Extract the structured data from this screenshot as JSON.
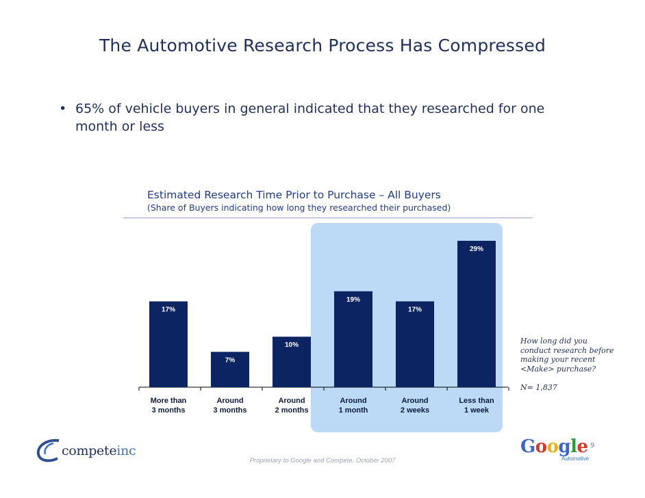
{
  "slide": {
    "title": "The Automotive Research Process Has Compressed",
    "bullet_symbol": "•",
    "bullet": "65% of vehicle buyers in general indicated that they researched for one month or less",
    "footer": "Proprietary to Google and Compete. October 2007",
    "page_number": "9",
    "note_question": "How long did you conduct research before making your recent <Make> purchase?",
    "note_n": "N= 1,837",
    "logos": {
      "compete_text_main": "compete",
      "compete_text_suffix": "inc",
      "google_letters": [
        "G",
        "o",
        "o",
        "g",
        "l",
        "e"
      ],
      "google_sub": "Automotive"
    }
  },
  "colors": {
    "bar": "#0c2461",
    "highlight": "#bcd9f6",
    "title": "#1f2f5a",
    "google": [
      "#3a66c9",
      "#d23b2c",
      "#e8b21a",
      "#3a66c9",
      "#2f9a3a",
      "#d23b2c"
    ]
  },
  "chart_data": {
    "type": "bar",
    "title": "Estimated Research Time Prior to Purchase – All Buyers",
    "subtitle": "(Share of Buyers indicating how long they researched their purchased)",
    "categories": [
      [
        "More than",
        "3 months"
      ],
      [
        "Around",
        "3 months"
      ],
      [
        "Around",
        "2 months"
      ],
      [
        "Around",
        "1 month"
      ],
      [
        "Around",
        "2 weeks"
      ],
      [
        "Less than",
        "1 week"
      ]
    ],
    "values": [
      17,
      7,
      10,
      19,
      17,
      29
    ],
    "value_labels": [
      "17%",
      "7%",
      "10%",
      "19%",
      "17%",
      "29%"
    ],
    "unit": "%",
    "ylim": [
      0,
      29
    ],
    "highlighted_categories": [
      3,
      4,
      5
    ],
    "grid": false,
    "legend": "none"
  }
}
